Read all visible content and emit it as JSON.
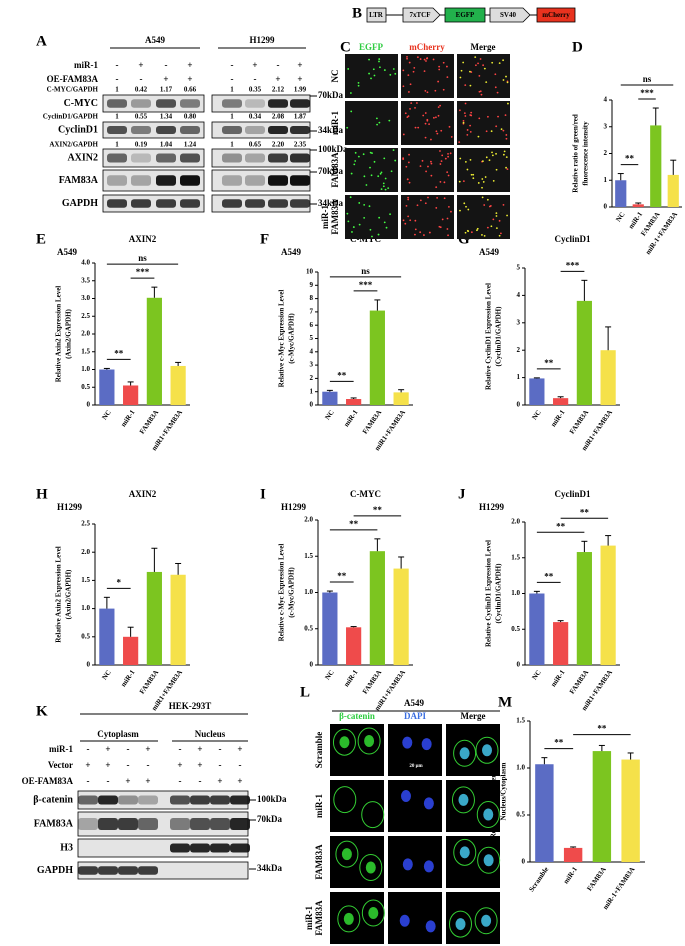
{
  "chart_data": [
    {
      "type": "bar",
      "panel": "D",
      "categories": [
        "NC",
        "miR-1",
        "FAM83A",
        "miR-1+FAM83A"
      ],
      "values": [
        1.0,
        0.1,
        3.05,
        1.2
      ],
      "errors": [
        0.25,
        0.05,
        0.65,
        0.55
      ],
      "colors": [
        "#5b6cc4",
        "#ef4b4b",
        "#7cc520",
        "#f5e14a"
      ],
      "ylabel": [
        "Relative ratio of green/red",
        "fluorescence intensity"
      ],
      "ylim": [
        0,
        4
      ],
      "yticks": [
        0,
        1,
        2,
        3,
        4
      ],
      "annotations": [
        {
          "text": "**",
          "from": 0,
          "to": 1
        },
        {
          "text": "***",
          "from": 1,
          "to": 2
        },
        {
          "text": "ns",
          "from": 0,
          "to": 3
        }
      ]
    },
    {
      "type": "bar",
      "panel": "E",
      "subtitle": "A549",
      "title": "AXIN2",
      "categories": [
        "NC",
        "miR-1",
        "FAM83A",
        "miR1+FAM83A"
      ],
      "values": [
        1.0,
        0.55,
        3.02,
        1.1
      ],
      "errors": [
        0.03,
        0.1,
        0.3,
        0.1
      ],
      "colors": [
        "#5b6cc4",
        "#ef4b4b",
        "#7cc520",
        "#f5e14a"
      ],
      "ylabel": [
        "Relative Axin2 Expression Level",
        "(Axin2/GAPDH)"
      ],
      "ylim": [
        0,
        4
      ],
      "yticks": [
        0,
        0.5,
        {
          "value": 1,
          "label": "1.0"
        },
        1.5,
        {
          "value": 2,
          "label": "2.0"
        },
        2.5,
        {
          "value": 3,
          "label": "3.0"
        },
        3.5,
        {
          "value": 4,
          "label": "4.0"
        }
      ],
      "annotations": [
        {
          "text": "**",
          "from": 0,
          "to": 1
        },
        {
          "text": "***",
          "from": 1,
          "to": 2
        },
        {
          "text": "ns",
          "from": 0,
          "to": 3
        }
      ]
    },
    {
      "type": "bar",
      "panel": "F",
      "subtitle": "A549",
      "title": "C-MYC",
      "categories": [
        "NC",
        "miR-1",
        "FAM83A",
        "miR1+FAM83A"
      ],
      "values": [
        1.0,
        0.45,
        7.1,
        0.95
      ],
      "errors": [
        0.1,
        0.08,
        0.8,
        0.2
      ],
      "colors": [
        "#5b6cc4",
        "#ef4b4b",
        "#7cc520",
        "#f5e14a"
      ],
      "ylabel": [
        "Relative c-Myc Expression Level",
        "(c-Myc/GAPDH)"
      ],
      "ylim": [
        0,
        10
      ],
      "yticks": [
        0,
        1,
        2,
        3,
        4,
        5,
        6,
        7,
        8,
        9,
        10
      ],
      "annotations": [
        {
          "text": "**",
          "from": 0,
          "to": 1
        },
        {
          "text": "***",
          "from": 1,
          "to": 2
        },
        {
          "text": "ns",
          "from": 0,
          "to": 3
        }
      ]
    },
    {
      "type": "bar",
      "panel": "G",
      "subtitle": "A549",
      "title": "CyclinD1",
      "categories": [
        "NC",
        "miR-1",
        "FAM83A",
        "miR1+FAM83A"
      ],
      "values": [
        0.97,
        0.25,
        3.8,
        2.0
      ],
      "errors": [
        0.02,
        0.05,
        0.75,
        0.85
      ],
      "colors": [
        "#5b6cc4",
        "#ef4b4b",
        "#7cc520",
        "#f5e14a"
      ],
      "ylabel": [
        "Relative CyclinD1 Expression Level",
        "(CyclinD1/GAPDH)"
      ],
      "ylim": [
        0,
        5
      ],
      "yticks": [
        0,
        1,
        2,
        3,
        4,
        5
      ],
      "annotations": [
        {
          "text": "**",
          "from": 0,
          "to": 1
        },
        {
          "text": "***",
          "from": 1,
          "to": 2
        }
      ]
    },
    {
      "type": "bar",
      "panel": "H",
      "subtitle": "H1299",
      "title": "AXIN2",
      "categories": [
        "NC",
        "miR-1",
        "FAM83A",
        "miR1+FAM83A"
      ],
      "values": [
        1.0,
        0.5,
        1.65,
        1.6
      ],
      "errors": [
        0.2,
        0.17,
        0.42,
        0.2
      ],
      "colors": [
        "#5b6cc4",
        "#ef4b4b",
        "#7cc520",
        "#f5e14a"
      ],
      "ylabel": [
        "Relative Axin2 Expression Level",
        "(Axin2/GAPDH)"
      ],
      "ylim": [
        0,
        2.5
      ],
      "yticks": [
        0,
        0.5,
        {
          "value": 1,
          "label": "1.0"
        },
        1.5,
        {
          "value": 2,
          "label": "2.0"
        },
        2.5
      ],
      "annotations": [
        {
          "text": "*",
          "from": 0,
          "to": 1
        }
      ]
    },
    {
      "type": "bar",
      "panel": "I",
      "subtitle": "H1299",
      "title": "C-MYC",
      "categories": [
        "NC",
        "miR-1",
        "FAM83A",
        "miR1+FAM83A"
      ],
      "values": [
        1.0,
        0.52,
        1.57,
        1.33
      ],
      "errors": [
        0.02,
        0.01,
        0.17,
        0.16
      ],
      "colors": [
        "#5b6cc4",
        "#ef4b4b",
        "#7cc520",
        "#f5e14a"
      ],
      "ylabel": [
        "Relative c-Myc Expression Level",
        "(c-Myc/GAPDH)"
      ],
      "ylim": [
        0,
        2
      ],
      "yticks": [
        0,
        0.5,
        {
          "value": 1,
          "label": "1.0"
        },
        1.5,
        {
          "value": 2,
          "label": "2.0"
        }
      ],
      "annotations": [
        {
          "text": "**",
          "from": 0,
          "to": 1
        },
        {
          "text": "**",
          "from": 0,
          "to": 2
        },
        {
          "text": "**",
          "from": 1,
          "to": 3
        }
      ]
    },
    {
      "type": "bar",
      "panel": "J",
      "subtitle": "H1299",
      "title": "CyclinD1",
      "categories": [
        "NC",
        "miR-1",
        "FAM83A",
        "miR1+FAM83A"
      ],
      "values": [
        1.0,
        0.6,
        1.58,
        1.67
      ],
      "errors": [
        0.03,
        0.02,
        0.15,
        0.14
      ],
      "colors": [
        "#5b6cc4",
        "#ef4b4b",
        "#7cc520",
        "#f5e14a"
      ],
      "ylabel": [
        "Relative CyclinD1 Expression Level",
        "(CyclinD1/GAPDH)"
      ],
      "ylim": [
        0,
        2
      ],
      "yticks": [
        0,
        0.5,
        {
          "value": 1,
          "label": "1.0"
        },
        1.5,
        {
          "value": 2,
          "label": "2.0"
        }
      ],
      "annotations": [
        {
          "text": "**",
          "from": 0,
          "to": 1
        },
        {
          "text": "**",
          "from": 0,
          "to": 2
        },
        {
          "text": "**",
          "from": 1,
          "to": 3
        }
      ]
    },
    {
      "type": "bar",
      "panel": "M",
      "categories": [
        "Scramble",
        "miR-1",
        "FAM83A",
        "miR-1+FAM83A"
      ],
      "values": [
        1.04,
        0.15,
        1.18,
        1.09
      ],
      "errors": [
        0.07,
        0.01,
        0.06,
        0.07
      ],
      "colors": [
        "#5b6cc4",
        "#ef4b4b",
        "#7cc520",
        "#f5e14a"
      ],
      "ylabel": [
        "Relative intensity percentage of",
        "Nucleus/Cytoplasm"
      ],
      "ylim": [
        0,
        1.5
      ],
      "yticks": [
        0,
        0.5,
        {
          "value": 1,
          "label": "1.0"
        },
        1.5
      ],
      "annotations": [
        {
          "text": "**",
          "from": 0,
          "to": 1
        },
        {
          "text": "**",
          "from": 1,
          "to": 3
        }
      ]
    }
  ],
  "panel_a": {
    "label": "A",
    "groups": [
      "A549",
      "H1299"
    ],
    "rows": [
      {
        "name": "miR-1",
        "signs": [
          "-",
          "+",
          "-",
          "+",
          "-",
          "+",
          "-",
          "+"
        ]
      },
      {
        "name": "OE-FAM83A",
        "signs": [
          "-",
          "-",
          "+",
          "+",
          "-",
          "-",
          "+",
          "+"
        ]
      }
    ],
    "quant": [
      {
        "name": "C-MYC/GAPDH",
        "values": [
          "1",
          "0.42",
          "1.17",
          "0.66",
          "1",
          "0.35",
          "2.12",
          "1.99"
        ]
      },
      {
        "name": "CyclinD1/GAPDH",
        "values": [
          "1",
          "0.55",
          "1.34",
          "0.80",
          "1",
          "0.34",
          "2.08",
          "1.87"
        ]
      },
      {
        "name": "AXIN2/GAPDH",
        "values": [
          "1",
          "0.19",
          "1.04",
          "1.24",
          "1",
          "0.65",
          "2.20",
          "2.35"
        ]
      }
    ],
    "blots": [
      "C-MYC",
      "CyclinD1",
      "AXIN2",
      "FAM83A",
      "GAPDH"
    ],
    "markers": [
      "70kDa",
      "34kDa",
      "100kDa",
      "70kDa",
      "34kDa"
    ]
  },
  "panel_b": {
    "label": "B",
    "elements": [
      "LTR",
      "7xTCF",
      "EGFP",
      "SV40",
      "mCherry"
    ]
  },
  "panel_c": {
    "label": "C",
    "columns": [
      "EGFP",
      "mCherry",
      "Merge"
    ],
    "rows": [
      [
        "NC"
      ],
      [
        "miR-1"
      ],
      [
        "FAM83A"
      ],
      [
        "miR-1",
        "FAM83A"
      ]
    ]
  },
  "panel_k": {
    "label": "K",
    "cell": "HEK-293T",
    "groups": [
      "Cytoplasm",
      "Nucleus"
    ],
    "rows": [
      {
        "name": "miR-1",
        "signs": [
          "-",
          "+",
          "-",
          "+",
          "-",
          "+",
          "-",
          "+"
        ]
      },
      {
        "name": "Vector",
        "signs": [
          "+",
          "+",
          "-",
          "-",
          "+",
          "+",
          "-",
          "-"
        ]
      },
      {
        "name": "OE-FAM83A",
        "signs": [
          "-",
          "-",
          "+",
          "+",
          "-",
          "-",
          "+",
          "+"
        ]
      }
    ],
    "blots": [
      "β-catenin",
      "FAM83A",
      "H3",
      "GAPDH"
    ],
    "markers": [
      "100kDa",
      "70kDa",
      "34kDa"
    ]
  },
  "panel_l": {
    "label": "L",
    "cell": "A549",
    "columns": [
      "β-catenin",
      "DAPI",
      "Merge"
    ],
    "rows": [
      [
        "Scramble"
      ],
      [
        "miR-1"
      ],
      [
        "FAM83A"
      ],
      [
        "miR-1",
        "FAM83A"
      ]
    ],
    "scale": "20 μm"
  }
}
